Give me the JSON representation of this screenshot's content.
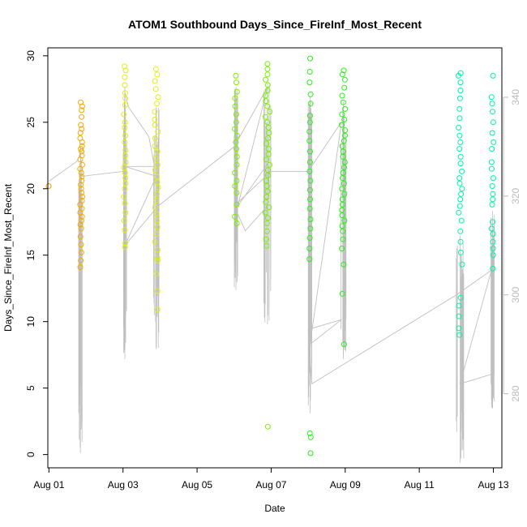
{
  "chart_data": {
    "type": "scatter",
    "title": "ATOM1 Southbound Days_Since_FireInf_Most_Recent",
    "xlabel": "Date",
    "ylabel": "Days_Since_FireInf_Most_Recent",
    "xlim": [
      0.97,
      13.23
    ],
    "ylim": [
      -1.0,
      30.6
    ],
    "x_ticks": [
      {
        "value": 1,
        "label": "Aug 01"
      },
      {
        "value": 3,
        "label": "Aug 03"
      },
      {
        "value": 5,
        "label": "Aug 05"
      },
      {
        "value": 7,
        "label": "Aug 07"
      },
      {
        "value": 9,
        "label": "Aug 09"
      },
      {
        "value": 11,
        "label": "Aug 11"
      },
      {
        "value": 13,
        "label": "Aug 13"
      }
    ],
    "y_ticks": [
      0,
      5,
      10,
      15,
      20,
      25,
      30
    ],
    "y2_ticks": [
      280,
      300,
      320,
      340
    ],
    "y2_range": [
      265,
      350
    ],
    "grid": false,
    "legend": "none",
    "colors": {
      "line": "#bfbfbf",
      "axis": "#000000",
      "right_axis": "#bbbbbb",
      "groups": [
        "#ee9b00",
        "#f6a800",
        "#dfef10",
        "#7af000",
        "#2bef1b",
        "#00f3a6"
      ]
    },
    "point_groups": [
      {
        "x_center": 1.0,
        "spread": 0.01,
        "y": [
          20.2
        ],
        "color": "#ee9b00"
      },
      {
        "x_center": 1.87,
        "spread": 0.03,
        "y": [
          26.5,
          26.2,
          25.9,
          25.4,
          24.8,
          24.5,
          24.2,
          23.8,
          23.5,
          23.2,
          23.0,
          22.8,
          22.5,
          22.2,
          21.8,
          21.5,
          21.2,
          20.9,
          20.6,
          20.3,
          20.0,
          19.7,
          19.4,
          19.1,
          18.8,
          18.5,
          18.2,
          17.9,
          17.6,
          17.3,
          17.0,
          16.4,
          15.8,
          15.2,
          14.6,
          14.1
        ],
        "color": "#f6a800"
      },
      {
        "x_center": 3.05,
        "spread": 0.03,
        "y": [
          29.2,
          28.9,
          28.4,
          27.8,
          27.2,
          26.8,
          26.3,
          25.6,
          25.0,
          24.6,
          24.0,
          23.5,
          22.9,
          22.5,
          22.0,
          21.6,
          21.2,
          20.8,
          20.4,
          20.0,
          19.4,
          18.9,
          18.2,
          17.6,
          16.9,
          15.9,
          15.6
        ],
        "color": "#dfef10"
      },
      {
        "x_center": 3.9,
        "spread": 0.05,
        "y": [
          29.0,
          28.6,
          28.1,
          27.5,
          26.9,
          26.4,
          25.8,
          25.2,
          24.8,
          24.3,
          23.8,
          23.2,
          22.8,
          22.3,
          21.8,
          21.4,
          20.9,
          20.5,
          20.1,
          19.6,
          19.1,
          18.6,
          18.1,
          17.6,
          17.1,
          16.6,
          16.0,
          15.4,
          14.8,
          14.6,
          13.6,
          12.3,
          10.9
        ],
        "color": "#dfef10"
      },
      {
        "x_center": 6.05,
        "spread": 0.04,
        "y": [
          28.5,
          28.0,
          27.3,
          26.8,
          26.2,
          25.6,
          25.0,
          24.5,
          24.0,
          23.5,
          23.0,
          22.4,
          21.8,
          21.2,
          20.6,
          20.2,
          19.7,
          18.8,
          17.9,
          17.4
        ],
        "color": "#7af000"
      },
      {
        "x_center": 6.9,
        "spread": 0.06,
        "y": [
          29.4,
          29.0,
          28.6,
          28.2,
          27.8,
          27.4,
          27.0,
          26.6,
          26.2,
          25.8,
          25.4,
          25.0,
          24.6,
          24.2,
          23.8,
          23.4,
          23.0,
          22.6,
          22.2,
          21.8,
          21.4,
          21.0,
          20.6,
          20.2,
          19.8,
          19.4,
          19.0,
          18.6,
          18.2,
          17.8,
          17.4,
          16.8,
          16.2,
          15.7,
          2.1
        ],
        "color": "#7af000"
      },
      {
        "x_center": 8.05,
        "spread": 0.02,
        "y": [
          29.8,
          28.8,
          28.0,
          27.1,
          26.4,
          25.5,
          25.0,
          24.3,
          23.6,
          22.8,
          22.0,
          21.3,
          20.6,
          19.9,
          19.2,
          18.5,
          17.7,
          17.0,
          16.3,
          15.5,
          14.7,
          1.6,
          1.3,
          0.1
        ],
        "color": "#2bef1b"
      },
      {
        "x_center": 8.95,
        "spread": 0.05,
        "y": [
          28.9,
          28.6,
          28.2,
          27.6,
          27.0,
          26.5,
          26.0,
          25.6,
          25.2,
          24.8,
          24.4,
          24.0,
          23.6,
          23.2,
          22.8,
          22.4,
          22.0,
          21.6,
          21.2,
          20.8,
          20.4,
          20.0,
          19.6,
          19.2,
          18.8,
          18.4,
          18.0,
          17.6,
          17.2,
          16.8,
          16.2,
          15.5,
          14.3,
          12.1,
          8.3
        ],
        "color": "#2bef1b"
      },
      {
        "x_center": 12.1,
        "spread": 0.06,
        "y": [
          28.7,
          28.5,
          28.0,
          27.4,
          26.8,
          26.0,
          25.3,
          24.6,
          24.0,
          23.5,
          23.0,
          22.4,
          21.9,
          21.3,
          20.8,
          20.4,
          20.0,
          19.6,
          19.2,
          18.7,
          18.2,
          17.6,
          16.8,
          16.0,
          15.2,
          14.3,
          11.8,
          11.2,
          10.4,
          9.5,
          9.0
        ],
        "color": "#00f3a6"
      },
      {
        "x_center": 12.98,
        "spread": 0.03,
        "y": [
          28.5,
          26.9,
          26.4,
          25.8,
          25.0,
          24.2,
          23.5,
          23.0,
          22.0,
          21.5,
          20.8,
          20.2,
          19.6,
          19.2,
          18.8,
          17.5,
          17.0,
          16.6,
          16.0,
          15.5,
          15.0,
          14.0
        ],
        "color": "#00f3a6"
      }
    ],
    "y2_trace_path": [
      [
        1.0,
        323
      ],
      [
        1.75,
        327
      ],
      [
        1.85,
        328.5
      ],
      [
        1.9,
        324
      ],
      [
        3.0,
        325
      ],
      [
        3.05,
        341
      ],
      [
        3.15,
        338
      ],
      [
        3.7,
        332
      ],
      [
        3.85,
        326
      ],
      [
        3.05,
        326
      ],
      [
        3.9,
        324
      ],
      [
        3.05,
        310
      ],
      [
        3.95,
        318
      ],
      [
        6.0,
        330
      ],
      [
        6.9,
        342
      ],
      [
        6.1,
        318
      ],
      [
        6.95,
        327
      ],
      [
        6.9,
        318
      ],
      [
        6.3,
        313
      ],
      [
        6.0,
        318
      ],
      [
        7.0,
        325
      ],
      [
        8.0,
        325
      ],
      [
        8.9,
        335
      ],
      [
        8.05,
        290
      ],
      [
        8.9,
        295
      ],
      [
        8.0,
        293
      ],
      [
        8.1,
        282
      ],
      [
        12.0,
        300
      ],
      [
        12.95,
        305
      ],
      [
        12.1,
        282
      ],
      [
        12.98,
        284
      ]
    ],
    "y2_spikes": [
      {
        "x_center": 1.85,
        "spread": 0.05,
        "min": 268,
        "max": 330
      },
      {
        "x_center": 3.05,
        "spread": 0.05,
        "min": 287,
        "max": 342
      },
      {
        "x_center": 3.9,
        "spread": 0.08,
        "min": 289,
        "max": 338
      },
      {
        "x_center": 6.05,
        "spread": 0.05,
        "min": 301,
        "max": 342
      },
      {
        "x_center": 6.9,
        "spread": 0.1,
        "min": 294,
        "max": 343
      },
      {
        "x_center": 8.05,
        "spread": 0.05,
        "min": 276,
        "max": 340
      },
      {
        "x_center": 8.95,
        "spread": 0.08,
        "min": 287,
        "max": 339
      },
      {
        "x_center": 12.1,
        "spread": 0.1,
        "min": 266,
        "max": 312
      },
      {
        "x_center": 12.98,
        "spread": 0.05,
        "min": 277,
        "max": 317
      }
    ]
  }
}
